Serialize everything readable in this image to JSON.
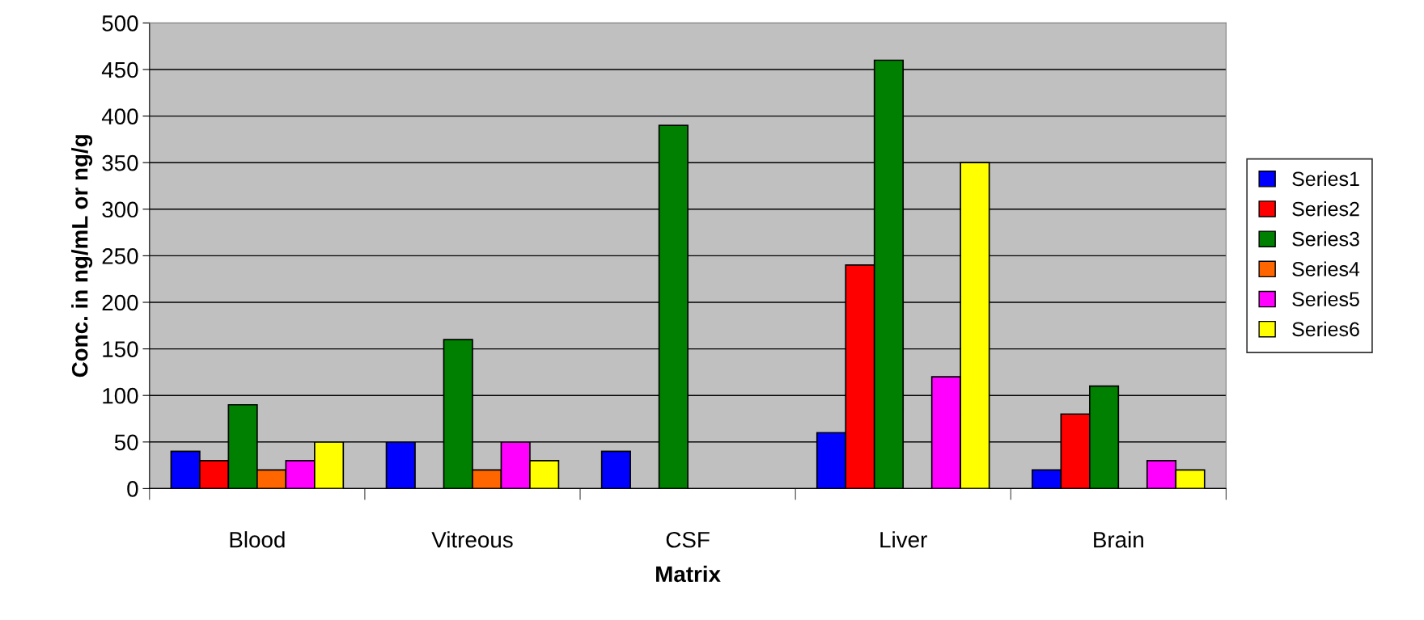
{
  "chart_data": {
    "type": "bar",
    "xlabel": "Matrix",
    "ylabel": "Conc. in ng/mL or ng/g",
    "categories": [
      "Blood",
      "Vitreous",
      "CSF",
      "Liver",
      "Brain"
    ],
    "series": [
      {
        "name": "Series1",
        "color": "#0000ff",
        "values": [
          40,
          50,
          40,
          60,
          20
        ]
      },
      {
        "name": "Series2",
        "color": "#ff0000",
        "values": [
          30,
          null,
          null,
          240,
          80
        ]
      },
      {
        "name": "Series3",
        "color": "#008000",
        "values": [
          90,
          160,
          390,
          460,
          110
        ]
      },
      {
        "name": "Series4",
        "color": "#ff6600",
        "values": [
          20,
          20,
          null,
          null,
          null
        ]
      },
      {
        "name": "Series5",
        "color": "#ff00ff",
        "values": [
          30,
          50,
          null,
          120,
          30
        ]
      },
      {
        "name": "Series6",
        "color": "#ffff00",
        "values": [
          50,
          30,
          null,
          350,
          20
        ]
      }
    ],
    "ylim": [
      0,
      500
    ],
    "yticks": [
      0,
      50,
      100,
      150,
      200,
      250,
      300,
      350,
      400,
      450,
      500
    ],
    "grid": "y",
    "legend": "right"
  }
}
